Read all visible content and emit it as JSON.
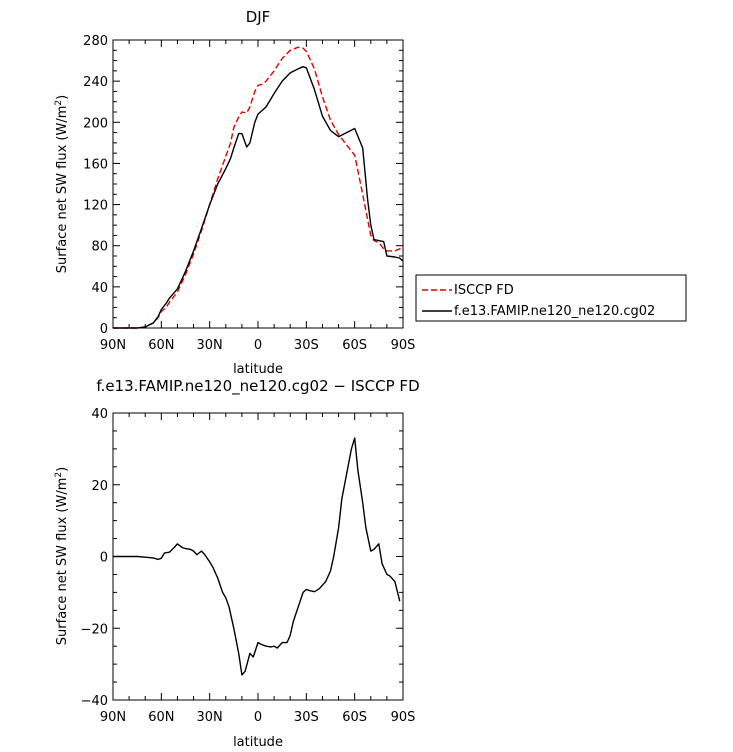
{
  "chart_data": [
    {
      "type": "line",
      "title": "DJF",
      "xlabel": "latitude",
      "ylabel": "Surface net SW flux (W/m²)",
      "ylabel_main": "Surface net SW flux (W/m",
      "ylabel_sup": "2",
      "ylabel_close": ")",
      "xlim": [
        90,
        -90
      ],
      "ylim": [
        0,
        280
      ],
      "xticks": [
        90,
        60,
        30,
        0,
        -30,
        -60,
        -90
      ],
      "xticklabels": [
        "90N",
        "60N",
        "30N",
        "0",
        "30S",
        "60S",
        "90S"
      ],
      "yticks": [
        0,
        40,
        80,
        120,
        160,
        200,
        240,
        280
      ],
      "yticklabels": [
        "0",
        "40",
        "80",
        "120",
        "160",
        "200",
        "240",
        "280"
      ],
      "legend_position": "right-outside",
      "series": [
        {
          "name": "ISCCP FD",
          "color": "#e00000",
          "style": "dashed",
          "x": [
            90,
            85,
            80,
            75,
            70,
            65,
            62,
            60,
            57,
            55,
            50,
            45,
            40,
            35,
            30,
            25,
            20,
            17,
            15,
            12,
            10,
            7,
            5,
            2,
            0,
            -3,
            -5,
            -10,
            -15,
            -20,
            -25,
            -28,
            -30,
            -35,
            -40,
            -45,
            -50,
            -55,
            -60,
            -65,
            -70,
            -72,
            -75,
            -78,
            -80,
            -85,
            -88,
            -90
          ],
          "y": [
            0,
            0,
            0,
            0,
            1,
            5,
            10,
            16,
            20,
            25,
            35,
            52,
            72,
            95,
            120,
            145,
            167,
            180,
            195,
            205,
            210,
            209,
            215,
            230,
            236,
            237,
            240,
            250,
            262,
            270,
            273,
            272,
            269,
            252,
            225,
            202,
            188,
            178,
            168,
            130,
            90,
            85,
            83,
            77,
            75,
            75,
            77,
            79
          ]
        },
        {
          "name": "f.e13.FAMIP.ne120_ne120.cg02",
          "color": "#000000",
          "style": "solid",
          "x": [
            90,
            85,
            80,
            75,
            70,
            65,
            62,
            60,
            57,
            55,
            50,
            45,
            40,
            35,
            30,
            25,
            20,
            17,
            15,
            12,
            10,
            7,
            5,
            2,
            0,
            -3,
            -5,
            -10,
            -15,
            -20,
            -25,
            -28,
            -30,
            -35,
            -40,
            -45,
            -50,
            -55,
            -60,
            -65,
            -68,
            -70,
            -72,
            -75,
            -78,
            -80,
            -85,
            -88,
            -90
          ],
          "y": [
            0,
            0,
            0,
            0,
            1,
            5,
            11,
            18,
            24,
            29,
            38,
            55,
            75,
            97,
            120,
            140,
            155,
            165,
            175,
            189,
            189,
            176,
            180,
            200,
            208,
            212,
            215,
            228,
            240,
            248,
            252,
            254,
            253,
            232,
            206,
            192,
            186,
            190,
            194,
            175,
            125,
            100,
            86,
            85,
            84,
            70,
            69,
            68,
            65
          ]
        }
      ]
    },
    {
      "type": "line",
      "title": "f.e13.FAMIP.ne120_ne120.cg02 − ISCCP FD",
      "xlabel": "latitude",
      "ylabel": "Surface net SW flux (W/m²)",
      "ylabel_main": "Surface net SW flux (W/m",
      "ylabel_sup": "2",
      "ylabel_close": ")",
      "xlim": [
        90,
        -90
      ],
      "ylim": [
        -40,
        40
      ],
      "xticks": [
        90,
        60,
        30,
        0,
        -30,
        -60,
        -90
      ],
      "xticklabels": [
        "90N",
        "60N",
        "30N",
        "0",
        "30S",
        "60S",
        "90S"
      ],
      "yticks": [
        -40,
        -20,
        0,
        20,
        40
      ],
      "yticklabels": [
        "−40",
        "−20",
        "0",
        "20",
        "40"
      ],
      "series": [
        {
          "color": "#000000",
          "style": "solid",
          "x": [
            90,
            85,
            80,
            75,
            70,
            65,
            62,
            60,
            58,
            55,
            52,
            50,
            47,
            45,
            42,
            40,
            38,
            35,
            33,
            30,
            28,
            25,
            22,
            20,
            18,
            15,
            12,
            10,
            8,
            5,
            3,
            0,
            -2,
            -5,
            -8,
            -10,
            -12,
            -15,
            -18,
            -20,
            -22,
            -25,
            -28,
            -30,
            -32,
            -35,
            -38,
            -40,
            -42,
            -45,
            -47,
            -50,
            -52,
            -55,
            -58,
            -60,
            -62,
            -65,
            -67,
            -70,
            -72,
            -75,
            -77,
            -80,
            -82,
            -85,
            -88
          ],
          "y": [
            0,
            0,
            0,
            0,
            -0.2,
            -0.4,
            -0.8,
            -0.5,
            1,
            1.2,
            2.5,
            3.5,
            2.5,
            2.2,
            2,
            1.5,
            0.5,
            1.5,
            0.5,
            -1.5,
            -3,
            -6,
            -10,
            -11.5,
            -14,
            -20,
            -27,
            -33,
            -32,
            -27,
            -28,
            -24,
            -24.5,
            -25,
            -25.2,
            -25,
            -25.5,
            -24,
            -24,
            -22,
            -18,
            -14,
            -10,
            -9.2,
            -9.5,
            -9.8,
            -9,
            -8,
            -7,
            -4,
            0,
            8,
            16,
            23,
            30,
            33,
            24,
            15,
            8,
            1.5,
            2,
            3.5,
            -2,
            -5,
            -5.5,
            -7,
            -12.5
          ]
        }
      ]
    }
  ]
}
